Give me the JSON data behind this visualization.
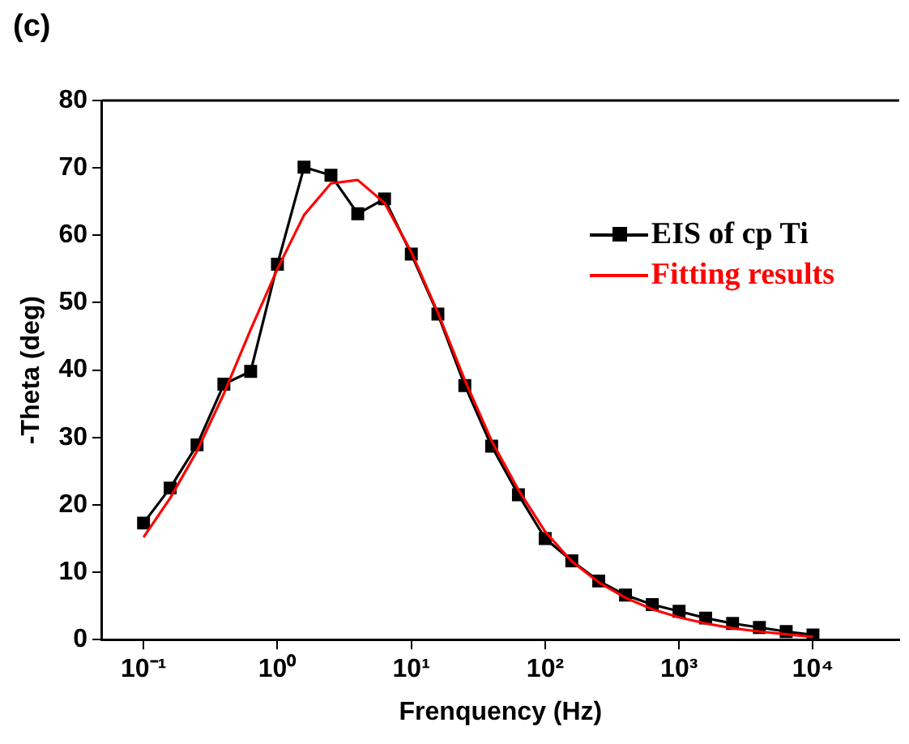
{
  "chart_data": {
    "type": "line",
    "title": "(c)",
    "xlabel": "Frenquency (Hz)",
    "ylabel": "-Theta (deg)",
    "x": [
      0.1,
      0.158,
      0.251,
      0.398,
      0.631,
      1,
      1.58,
      2.51,
      3.98,
      6.31,
      10,
      15.8,
      25.1,
      39.8,
      63.1,
      100,
      158,
      251,
      398,
      631,
      1000,
      1580,
      2510,
      3980,
      6310,
      10000
    ],
    "series": [
      {
        "name": "EIS of cp Ti",
        "color": "#000000",
        "marker": "square",
        "values": [
          17.3,
          22.5,
          28.9,
          37.9,
          39.8,
          55.7,
          70.1,
          68.9,
          63.2,
          65.4,
          57.2,
          48.3,
          37.7,
          28.7,
          21.5,
          15.0,
          11.7,
          8.7,
          6.6,
          5.2,
          4.2,
          3.2,
          2.4,
          1.8,
          1.2,
          0.7
        ]
      },
      {
        "name": "Fitting results",
        "color": "#ff0000",
        "marker": "none",
        "values": [
          15.2,
          21.0,
          28.0,
          36.5,
          46.0,
          55.0,
          63.0,
          67.7,
          68.2,
          64.8,
          57.5,
          48.5,
          38.5,
          29.5,
          22.2,
          16.0,
          11.6,
          8.5,
          6.2,
          4.5,
          3.3,
          2.4,
          1.7,
          1.2,
          0.8,
          0.4
        ]
      }
    ],
    "log": "x",
    "xlim": [
      0.049,
      44000
    ],
    "xticks": [
      {
        "value": 0.1,
        "label": "10⁻¹"
      },
      {
        "value": 1,
        "label": "10⁰"
      },
      {
        "value": 10,
        "label": "10¹"
      },
      {
        "value": 100,
        "label": "10²"
      },
      {
        "value": 1000,
        "label": "10³"
      },
      {
        "value": 10000,
        "label": "10⁴"
      }
    ],
    "ylim": [
      0,
      80
    ],
    "yticks": [
      0,
      10,
      20,
      30,
      40,
      50,
      60,
      70,
      80
    ],
    "grid": false,
    "legend": "top right",
    "line_style": "solid"
  }
}
